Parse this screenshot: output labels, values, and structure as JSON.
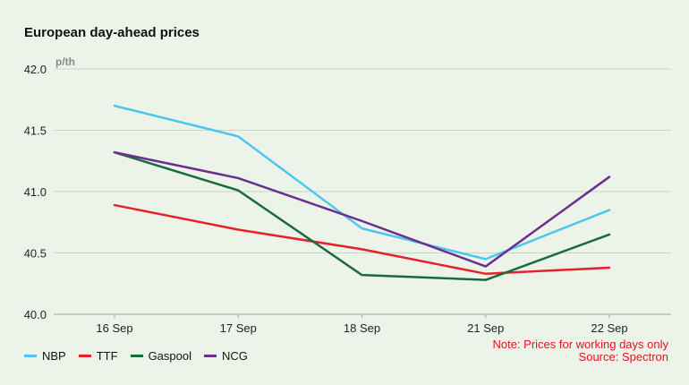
{
  "chart_data": {
    "type": "line",
    "title": "European day-ahead prices",
    "unit_label": "p/th",
    "categories": [
      "16 Sep",
      "17 Sep",
      "18 Sep",
      "21 Sep",
      "22 Sep"
    ],
    "ylim": [
      40.0,
      42.0
    ],
    "yticks": [
      "40.0",
      "40.5",
      "41.0",
      "41.5",
      "42.0"
    ],
    "grid": true,
    "legend_position": "bottom-left",
    "series": [
      {
        "name": "NBP",
        "color": "#4cc6f0",
        "values": [
          41.7,
          41.45,
          40.7,
          40.45,
          40.85
        ]
      },
      {
        "name": "TTF",
        "color": "#e8202a",
        "values": [
          40.89,
          40.69,
          40.53,
          40.33,
          40.38
        ]
      },
      {
        "name": "Gaspool",
        "color": "#1a6b3a",
        "values": [
          41.32,
          41.01,
          40.32,
          40.28,
          40.65
        ]
      },
      {
        "name": "NCG",
        "color": "#6b2f8f",
        "values": [
          41.32,
          41.11,
          40.76,
          40.39,
          41.12
        ]
      }
    ],
    "notes": [
      "Note: Prices for working days only",
      "Source: Spectron"
    ]
  }
}
